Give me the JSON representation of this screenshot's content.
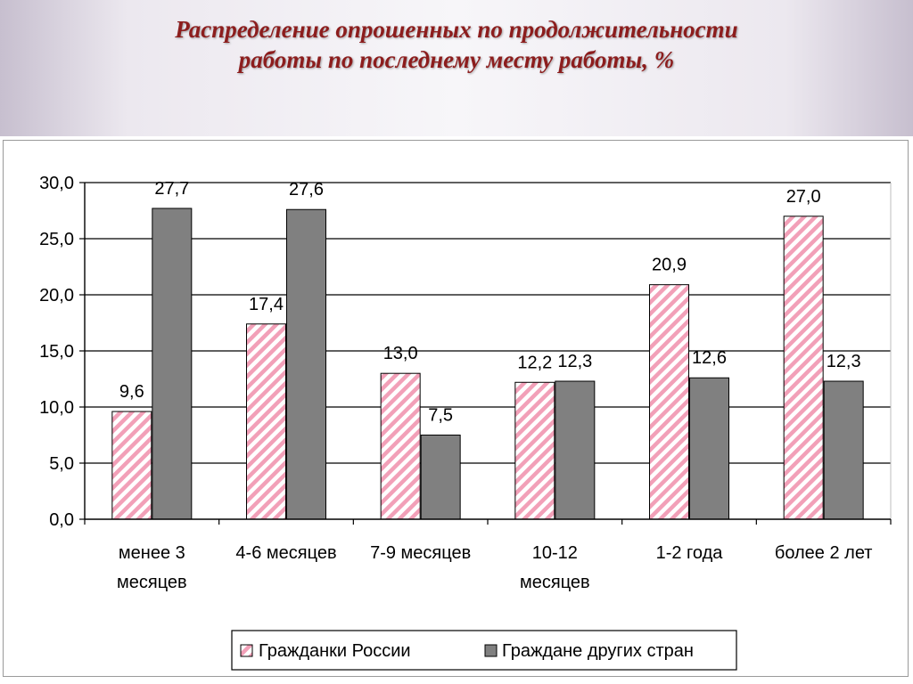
{
  "slide": {
    "title_line1": "Распределение опрошенных по продолжительности",
    "title_line2": "работы по последнему месту работы, %"
  },
  "colors": {
    "title": "#8c1d1d",
    "russia_stripe": "#f2a0b8",
    "other_fill": "#808080",
    "gridline": "#000000",
    "header_bg": "#ece8ef"
  },
  "chart_data": {
    "type": "bar",
    "categories": [
      [
        "менее 3",
        "месяцев"
      ],
      [
        "4-6 месяцев"
      ],
      [
        "7-9 месяцев"
      ],
      [
        "10-12",
        "месяцев"
      ],
      [
        "1-2 года"
      ],
      [
        "более 2 лет"
      ]
    ],
    "series": [
      {
        "name": "Гражданки России",
        "pattern": "pink-diagonal-stripes",
        "values": [
          9.6,
          17.4,
          13.0,
          12.2,
          20.9,
          27.0
        ],
        "labels": [
          "9,6",
          "17,4",
          "13,0",
          "12,2",
          "20,9",
          "27,0"
        ]
      },
      {
        "name": "Граждане других стран",
        "pattern": "solid-gray",
        "values": [
          27.7,
          27.6,
          7.5,
          12.3,
          12.6,
          12.3
        ],
        "labels": [
          "27,7",
          "27,6",
          "7,5",
          "12,3",
          "12,6",
          "12,3"
        ]
      }
    ],
    "ylim": [
      0,
      30
    ],
    "yticks": [
      0,
      5,
      10,
      15,
      20,
      25,
      30
    ],
    "ytick_labels": [
      "0,0",
      "5,0",
      "10,0",
      "15,0",
      "20,0",
      "25,0",
      "30,0"
    ],
    "grid": true,
    "legend_position": "bottom"
  }
}
